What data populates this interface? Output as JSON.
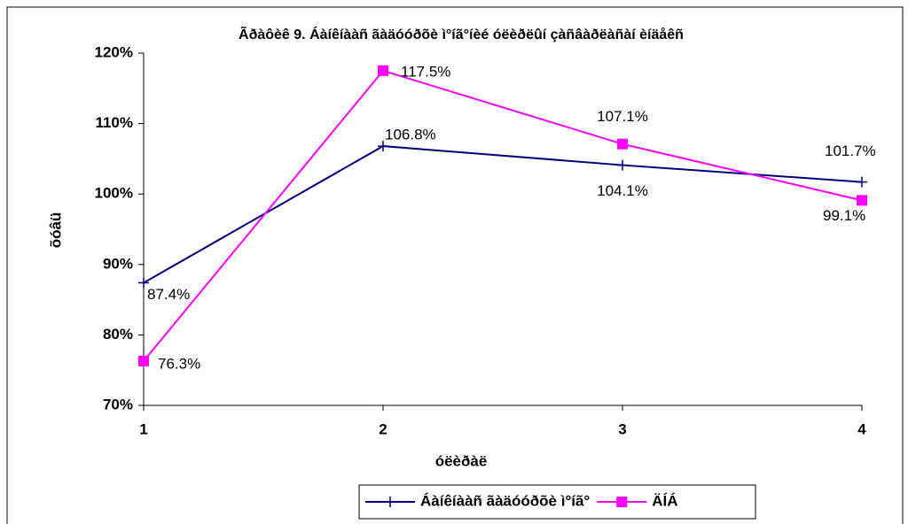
{
  "chart_data": {
    "type": "line",
    "title": "Ãðàôèê 9. Áàíêíààñ ãàäóóðõè ì°íã°íèé óëèðëûí çàñâàðëàñàí èíäåêñ",
    "xlabel": "óëèðàë",
    "ylabel": "õóâü",
    "x": [
      1,
      2,
      3,
      4
    ],
    "xlim": [
      1,
      4
    ],
    "xticks": [
      1,
      2,
      3,
      4
    ],
    "ylim": [
      70,
      120
    ],
    "yticks": [
      {
        "value": 70,
        "label": "70%"
      },
      {
        "value": 80,
        "label": "80%"
      },
      {
        "value": 90,
        "label": "90%"
      },
      {
        "value": 100,
        "label": "100%"
      },
      {
        "value": 110,
        "label": "110%"
      },
      {
        "value": 120,
        "label": "120%"
      }
    ],
    "legend": "bottom",
    "series": [
      {
        "name": "Áàíêíààñ ãàäóóðõè ì°íã°",
        "color": "#000080",
        "marker": "plus",
        "values": [
          87.4,
          106.8,
          104.1,
          101.7
        ],
        "value_labels": [
          "87.4%",
          "106.8%",
          "104.1%",
          "101.7%"
        ]
      },
      {
        "name": "ÄÍÁ",
        "color": "#ff00ff",
        "marker": "square",
        "values": [
          76.3,
          117.5,
          107.1,
          99.1
        ],
        "value_labels": [
          "76.3%",
          "117.5%",
          "107.1%",
          "99.1%"
        ]
      }
    ]
  }
}
